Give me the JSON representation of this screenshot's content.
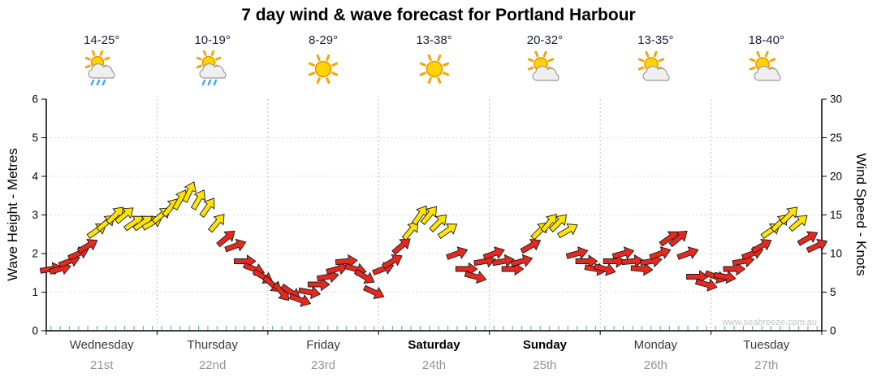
{
  "title": "7 day wind & wave forecast for Portland Harbour",
  "watermark": "www.seabreeze.com.au",
  "days": [
    {
      "name": "Wednesday",
      "date": "21st",
      "temps": "14-25°",
      "icon": "sun-cloud-rain",
      "weekend": false
    },
    {
      "name": "Thursday",
      "date": "22nd",
      "temps": "10-19°",
      "icon": "sun-cloud-rain",
      "weekend": false
    },
    {
      "name": "Friday",
      "date": "23rd",
      "temps": "8-29°",
      "icon": "sun",
      "weekend": false
    },
    {
      "name": "Saturday",
      "date": "24th",
      "temps": "13-38°",
      "icon": "sun",
      "weekend": true
    },
    {
      "name": "Sunday",
      "date": "25th",
      "temps": "20-32°",
      "icon": "sun-cloud",
      "weekend": true
    },
    {
      "name": "Monday",
      "date": "26th",
      "temps": "13-35°",
      "icon": "sun-cloud",
      "weekend": false
    },
    {
      "name": "Tuesday",
      "date": "27th",
      "temps": "18-40°",
      "icon": "sun-cloud",
      "weekend": false
    }
  ],
  "axes": {
    "left_label": "Wave Height - Metres",
    "right_label": "Wind Speed - Knots",
    "left_ticks": [
      0,
      1,
      2,
      3,
      4,
      5,
      6
    ],
    "right_ticks": [
      0,
      5,
      10,
      15,
      20,
      25,
      30
    ],
    "left_range": [
      0,
      6
    ],
    "right_range": [
      0,
      30
    ]
  },
  "colors": {
    "wind_low": "#e8281e",
    "wind_high": "#ffe400",
    "minor_tick": "#5fbf9f",
    "grid": "#bfbfbf",
    "grid_h": "#dcdcdc",
    "axis": "#000000",
    "watermark_text": "#c4c4c4"
  },
  "chart_data": {
    "type": "wind-arrow-series",
    "title": "7 day wind & wave forecast for Portland Harbour",
    "categories": [
      "Wednesday 21st",
      "Thursday 22nd",
      "Friday 23rd",
      "Saturday 24th",
      "Sunday 25th",
      "Monday 26th",
      "Tuesday 27th"
    ],
    "points_per_day": 12,
    "step_hours": 2,
    "y_axis_left": {
      "label": "Wave Height - Metres",
      "range": [
        0,
        6
      ]
    },
    "y_axis_right": {
      "label": "Wind Speed - Knots",
      "range": [
        0,
        30
      ]
    },
    "series_units": "knots",
    "yellow_threshold_knots": 13,
    "point_format": [
      "wind_speed_knots",
      "arrow_angle_deg_cw_from_east"
    ],
    "points": [
      [
        8,
        -10
      ],
      [
        8,
        -15
      ],
      [
        9,
        -20
      ],
      [
        10,
        -25
      ],
      [
        11,
        -30
      ],
      [
        13,
        -35
      ],
      [
        14,
        -40
      ],
      [
        15,
        -45
      ],
      [
        15,
        -40
      ],
      [
        14,
        -35
      ],
      [
        14,
        -35
      ],
      [
        14,
        -30
      ],
      [
        15,
        -40
      ],
      [
        16,
        -50
      ],
      [
        17,
        -60
      ],
      [
        18,
        -65
      ],
      [
        17,
        -60
      ],
      [
        16,
        -55
      ],
      [
        14,
        -50
      ],
      [
        12,
        -40
      ],
      [
        11,
        -20
      ],
      [
        9,
        0
      ],
      [
        8,
        20
      ],
      [
        7,
        30
      ],
      [
        6,
        40
      ],
      [
        5,
        50
      ],
      [
        5,
        35
      ],
      [
        4,
        20
      ],
      [
        5,
        10
      ],
      [
        6,
        0
      ],
      [
        7,
        -10
      ],
      [
        8,
        -15
      ],
      [
        9,
        -5
      ],
      [
        8,
        15
      ],
      [
        7,
        30
      ],
      [
        5,
        25
      ],
      [
        8,
        -20
      ],
      [
        9,
        -30
      ],
      [
        11,
        -40
      ],
      [
        13,
        -50
      ],
      [
        15,
        -55
      ],
      [
        15,
        -50
      ],
      [
        14,
        -45
      ],
      [
        13,
        -35
      ],
      [
        10,
        -20
      ],
      [
        8,
        0
      ],
      [
        7,
        15
      ],
      [
        9,
        -10
      ],
      [
        10,
        -20
      ],
      [
        9,
        -10
      ],
      [
        8,
        0
      ],
      [
        9,
        -15
      ],
      [
        11,
        -30
      ],
      [
        13,
        -45
      ],
      [
        14,
        -50
      ],
      [
        14,
        -45
      ],
      [
        13,
        -30
      ],
      [
        10,
        -15
      ],
      [
        9,
        0
      ],
      [
        8,
        10
      ],
      [
        8,
        15
      ],
      [
        9,
        0
      ],
      [
        10,
        -15
      ],
      [
        9,
        -5
      ],
      [
        8,
        5
      ],
      [
        9,
        -10
      ],
      [
        10,
        -20
      ],
      [
        12,
        -35
      ],
      [
        12,
        -40
      ],
      [
        10,
        -20
      ],
      [
        7,
        0
      ],
      [
        6,
        15
      ],
      [
        7,
        20
      ],
      [
        7,
        10
      ],
      [
        8,
        0
      ],
      [
        9,
        -10
      ],
      [
        10,
        -20
      ],
      [
        11,
        -30
      ],
      [
        13,
        -35
      ],
      [
        14,
        -45
      ],
      [
        15,
        -45
      ],
      [
        14,
        -40
      ],
      [
        12,
        -30
      ],
      [
        11,
        -25
      ]
    ]
  }
}
